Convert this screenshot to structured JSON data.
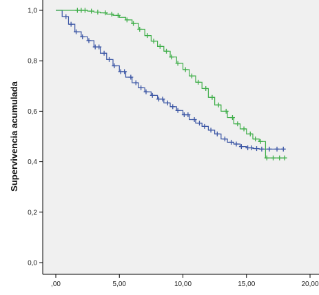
{
  "chart_data": {
    "type": "line",
    "subtype": "kaplan-meier-survival",
    "title": "",
    "xlabel": "",
    "ylabel": "Supervivencia acumulada",
    "xlim": [
      0,
      20
    ],
    "ylim": [
      0,
      1
    ],
    "x_ticks": [
      ",00",
      "5,00",
      "10,00",
      "15,00",
      "20,00"
    ],
    "y_ticks": [
      "0,0",
      "0,2",
      "0,4",
      "0,6",
      "0,8",
      "1,0"
    ],
    "grid": false,
    "legend": "none",
    "plot_background": "#f0f0f0",
    "censor_marker": "+",
    "series": [
      {
        "color": "#3a55a4",
        "points": [
          [
            0.0,
            1.0
          ],
          [
            0.5,
            0.975
          ],
          [
            1.0,
            0.945
          ],
          [
            1.5,
            0.915
          ],
          [
            2.0,
            0.895
          ],
          [
            2.5,
            0.88
          ],
          [
            3.0,
            0.855
          ],
          [
            3.5,
            0.83
          ],
          [
            4.0,
            0.805
          ],
          [
            4.5,
            0.78
          ],
          [
            5.0,
            0.757
          ],
          [
            5.5,
            0.735
          ],
          [
            6.0,
            0.713
          ],
          [
            6.5,
            0.693
          ],
          [
            7.0,
            0.677
          ],
          [
            7.5,
            0.663
          ],
          [
            8.0,
            0.648
          ],
          [
            8.5,
            0.633
          ],
          [
            9.0,
            0.618
          ],
          [
            9.5,
            0.603
          ],
          [
            10.0,
            0.586
          ],
          [
            10.5,
            0.567
          ],
          [
            11.0,
            0.553
          ],
          [
            11.5,
            0.54
          ],
          [
            12.0,
            0.525
          ],
          [
            12.5,
            0.51
          ],
          [
            13.0,
            0.49
          ],
          [
            13.5,
            0.477
          ],
          [
            14.0,
            0.47
          ],
          [
            14.5,
            0.46
          ],
          [
            15.0,
            0.455
          ],
          [
            15.5,
            0.452
          ],
          [
            16.0,
            0.45
          ],
          [
            16.5,
            0.45
          ],
          [
            17.0,
            0.45
          ],
          [
            18.0,
            0.45
          ]
        ]
      },
      {
        "color": "#3fae49",
        "points": [
          [
            0.0,
            1.0
          ],
          [
            1.0,
            1.0
          ],
          [
            1.5,
            1.0
          ],
          [
            2.0,
            1.0
          ],
          [
            2.5,
            0.997
          ],
          [
            3.0,
            0.993
          ],
          [
            3.5,
            0.99
          ],
          [
            4.0,
            0.985
          ],
          [
            4.5,
            0.98
          ],
          [
            5.0,
            0.972
          ],
          [
            5.5,
            0.962
          ],
          [
            6.0,
            0.948
          ],
          [
            6.5,
            0.925
          ],
          [
            7.0,
            0.9
          ],
          [
            7.5,
            0.878
          ],
          [
            8.0,
            0.857
          ],
          [
            8.5,
            0.838
          ],
          [
            9.0,
            0.815
          ],
          [
            9.5,
            0.79
          ],
          [
            10.0,
            0.765
          ],
          [
            10.5,
            0.74
          ],
          [
            11.0,
            0.715
          ],
          [
            11.5,
            0.69
          ],
          [
            12.0,
            0.655
          ],
          [
            12.5,
            0.625
          ],
          [
            13.0,
            0.6
          ],
          [
            13.5,
            0.575
          ],
          [
            14.0,
            0.55
          ],
          [
            14.5,
            0.53
          ],
          [
            15.0,
            0.51
          ],
          [
            15.5,
            0.49
          ],
          [
            16.0,
            0.48
          ],
          [
            16.5,
            0.415
          ],
          [
            17.0,
            0.415
          ],
          [
            18.0,
            0.415
          ]
        ]
      }
    ],
    "censor_times": [
      [
        0.8,
        1.2,
        1.6,
        2.1,
        2.6,
        3.1,
        3.4,
        3.8,
        4.2,
        4.6,
        5.1,
        5.4,
        5.9,
        6.3,
        6.7,
        7.1,
        7.6,
        8.1,
        8.4,
        8.8,
        9.2,
        9.6,
        10.1,
        10.4,
        10.9,
        11.3,
        11.7,
        12.2,
        12.7,
        13.3,
        13.8,
        14.2,
        14.6,
        15.1,
        15.4,
        15.8,
        16.2,
        16.8,
        17.4,
        17.9
      ],
      [
        1.7,
        2.0,
        2.3,
        2.8,
        3.3,
        3.9,
        4.4,
        4.9,
        5.6,
        6.1,
        6.6,
        7.2,
        7.7,
        8.2,
        8.7,
        9.1,
        9.6,
        10.2,
        10.7,
        11.2,
        11.8,
        12.3,
        12.8,
        13.4,
        13.9,
        14.3,
        14.8,
        15.3,
        15.7,
        16.1,
        16.6,
        17.1,
        17.6,
        18.0
      ]
    ]
  }
}
